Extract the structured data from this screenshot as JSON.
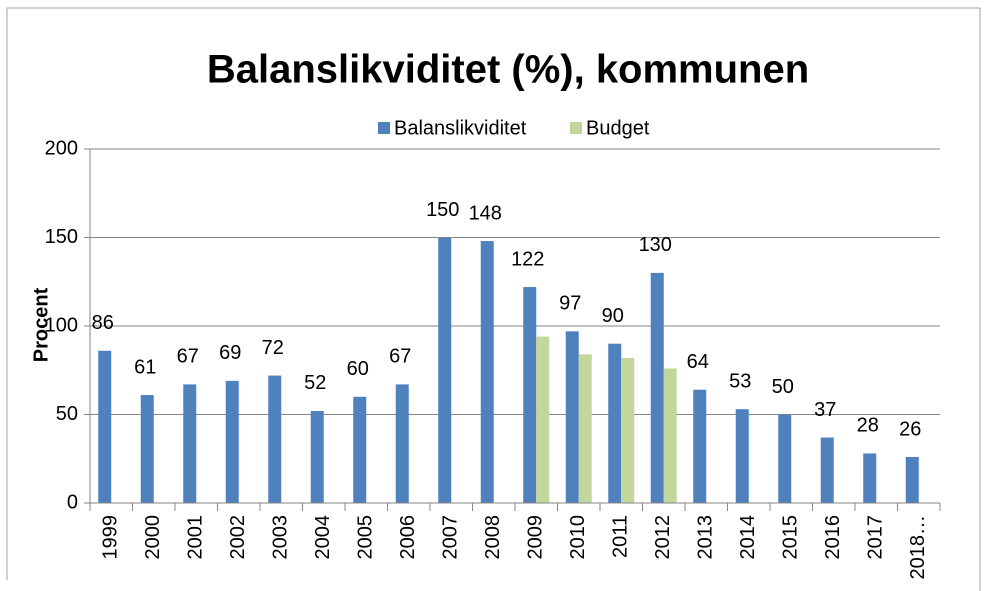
{
  "chart_data": {
    "type": "bar",
    "title": "Balanslikviditet (%), kommunen",
    "y_label": "Procent",
    "categories": [
      "1999",
      "2000",
      "2001",
      "2002",
      "2003",
      "2004",
      "2005",
      "2006",
      "2007",
      "2008",
      "2009",
      "2010",
      "2011",
      "2012",
      "2013",
      "2014",
      "2015",
      "2016",
      "2017",
      "2018…"
    ],
    "series": [
      {
        "name": "Balanslikviditet",
        "color": "#4f81bd",
        "values": [
          86,
          61,
          67,
          69,
          72,
          52,
          60,
          67,
          150,
          148,
          122,
          97,
          90,
          130,
          64,
          53,
          50,
          37,
          28,
          26
        ]
      },
      {
        "name": "Budget",
        "color": "#c3d69b",
        "values": [
          null,
          null,
          null,
          null,
          null,
          null,
          null,
          null,
          null,
          null,
          94,
          84,
          82,
          76,
          null,
          null,
          null,
          null,
          null,
          null
        ]
      }
    ],
    "ylim": [
      0,
      200
    ],
    "yticks": [
      0,
      50,
      100,
      150,
      200
    ],
    "grid": true,
    "legend": "top",
    "data_labels_series": [
      0
    ]
  }
}
